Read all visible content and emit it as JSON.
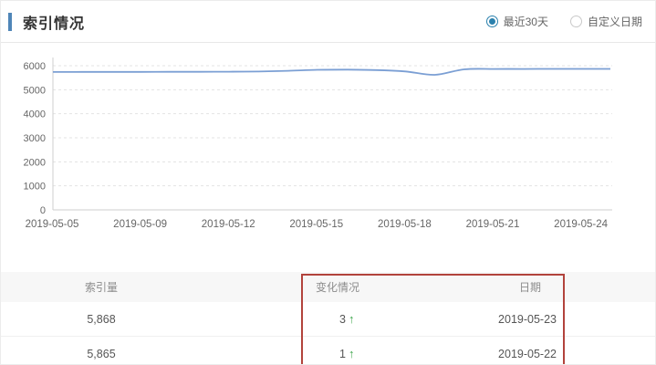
{
  "panel": {
    "title": "索引情况"
  },
  "controls": {
    "options": [
      {
        "label": "最近30天",
        "selected": true
      },
      {
        "label": "自定义日期",
        "selected": false
      }
    ]
  },
  "chart_data": {
    "type": "line",
    "title": "索引情况",
    "xlabel": "",
    "ylabel": "",
    "ylim": [
      0,
      6000
    ],
    "yticks": [
      0,
      1000,
      2000,
      3000,
      4000,
      5000,
      6000
    ],
    "xticks": [
      "2019-05-05",
      "2019-05-09",
      "2019-05-12",
      "2019-05-15",
      "2019-05-18",
      "2019-05-21",
      "2019-05-24"
    ],
    "grid": "horizontal-dashed",
    "legend": "none",
    "line_color": "#7b9fd4",
    "series": [
      {
        "name": "索引量",
        "values": [
          5738,
          5740,
          5741,
          5742,
          5744,
          5746,
          5750,
          5758,
          5788,
          5828,
          5836,
          5818,
          5760,
          5620,
          5850,
          5864,
          5865,
          5868,
          5868
        ]
      }
    ]
  },
  "table": {
    "columns": [
      "索引量",
      "变化情况",
      "日期"
    ],
    "rows": [
      {
        "index": "5,868",
        "change": "3",
        "arrow": "↑",
        "direction": "up",
        "date": "2019-05-23"
      },
      {
        "index": "5,865",
        "change": "1",
        "arrow": "↑",
        "direction": "up",
        "date": "2019-05-22"
      }
    ]
  },
  "colors": {
    "accent_bar": "#4f86b8",
    "radio_selected": "#2a80ad",
    "chart_line": "#7b9fd4",
    "change_up": "#3da64b",
    "highlight_border": "#b2433c",
    "table_header_bg": "#f7f7f7"
  }
}
